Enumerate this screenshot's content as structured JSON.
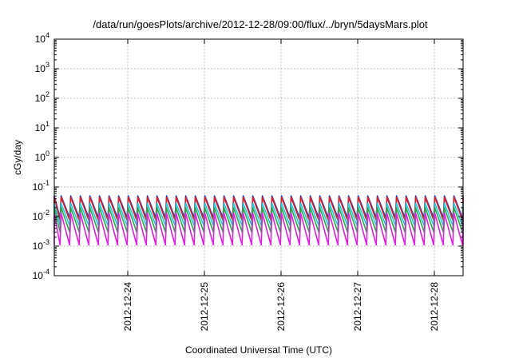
{
  "chart_data": {
    "type": "line",
    "title": "/data/run/goesPlots/archive/2012-12-28/09:00/flux/../bryn/5daysMars.plot",
    "xlabel": "Coordinated Universal Time (UTC)",
    "ylabel": "cGy/day",
    "yscale": "log",
    "ylim": [
      0.0001,
      10000
    ],
    "yticks": [
      {
        "value": 0.0001,
        "base": "10",
        "exp": "-4"
      },
      {
        "value": 0.001,
        "base": "10",
        "exp": "-3"
      },
      {
        "value": 0.01,
        "base": "10",
        "exp": "-2"
      },
      {
        "value": 0.1,
        "base": "10",
        "exp": "-1"
      },
      {
        "value": 1,
        "base": "10",
        "exp": "0"
      },
      {
        "value": 10,
        "base": "10",
        "exp": "1"
      },
      {
        "value": 100,
        "base": "10",
        "exp": "2"
      },
      {
        "value": 1000,
        "base": "10",
        "exp": "3"
      },
      {
        "value": 10000,
        "base": "10",
        "exp": "4"
      }
    ],
    "xlim": [
      "2012-12-23T01:00",
      "2012-12-28T09:00"
    ],
    "xticks": [
      {
        "value": "2012-12-24T00:00",
        "label": "2012-12-24"
      },
      {
        "value": "2012-12-25T00:00",
        "label": "2012-12-25"
      },
      {
        "value": "2012-12-26T00:00",
        "label": "2012-12-26"
      },
      {
        "value": "2012-12-27T00:00",
        "label": "2012-12-27"
      },
      {
        "value": "2012-12-28T00:00",
        "label": "2012-12-28"
      }
    ],
    "grid": true,
    "oscillation_period_hours": 3,
    "series": [
      {
        "color": "#1f3fd6",
        "peak": 0.05,
        "trough": 0.009
      },
      {
        "color": "#e02020",
        "peak": 0.045,
        "trough": 0.0075
      },
      {
        "color": "#20c8e0",
        "peak": 0.028,
        "trough": 0.005
      },
      {
        "color": "#2aa84a",
        "peak": 0.02,
        "trough": 0.003
      },
      {
        "color": "#e020e0",
        "peak": 0.013,
        "trough": 0.0011
      }
    ]
  }
}
